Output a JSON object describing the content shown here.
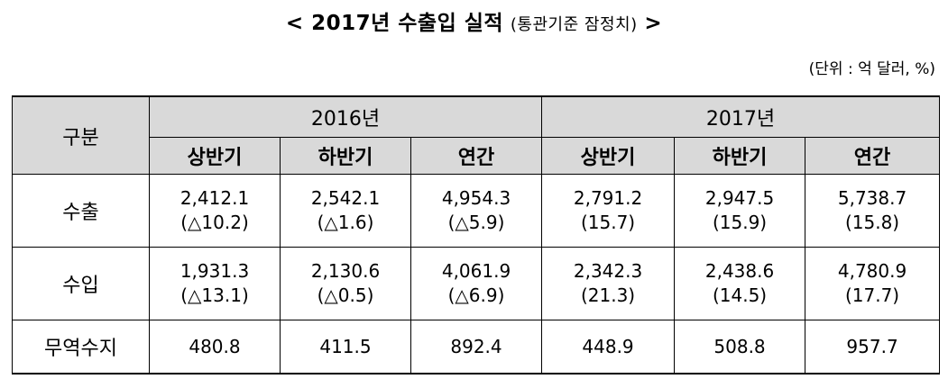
{
  "title": {
    "main": "< 2017년 수출입 실적",
    "sub": "(통관기준 잠정치)",
    "close": ">"
  },
  "unit_note": "(단위 : 억 달러, %)",
  "table": {
    "header_gubun": "구분",
    "years": [
      "2016년",
      "2017년"
    ],
    "periods": [
      "상반기",
      "하반기",
      "연간",
      "상반기",
      "하반기",
      "연간"
    ],
    "rows": [
      {
        "label": "수출",
        "values": [
          "2,412.1",
          "2,542.1",
          "4,954.3",
          "2,791.2",
          "2,947.5",
          "5,738.7"
        ],
        "changes": [
          "(△10.2)",
          "(△1.6)",
          "(△5.9)",
          "(15.7)",
          "(15.9)",
          "(15.8)"
        ]
      },
      {
        "label": "수입",
        "values": [
          "1,931.3",
          "2,130.6",
          "4,061.9",
          "2,342.3",
          "2,438.6",
          "4,780.9"
        ],
        "changes": [
          "(△13.1)",
          "(△0.5)",
          "(△6.9)",
          "(21.3)",
          "(14.5)",
          "(17.7)"
        ]
      },
      {
        "label": "무역수지",
        "values": [
          "480.8",
          "411.5",
          "892.4",
          "448.9",
          "508.8",
          "957.7"
        ]
      }
    ]
  }
}
